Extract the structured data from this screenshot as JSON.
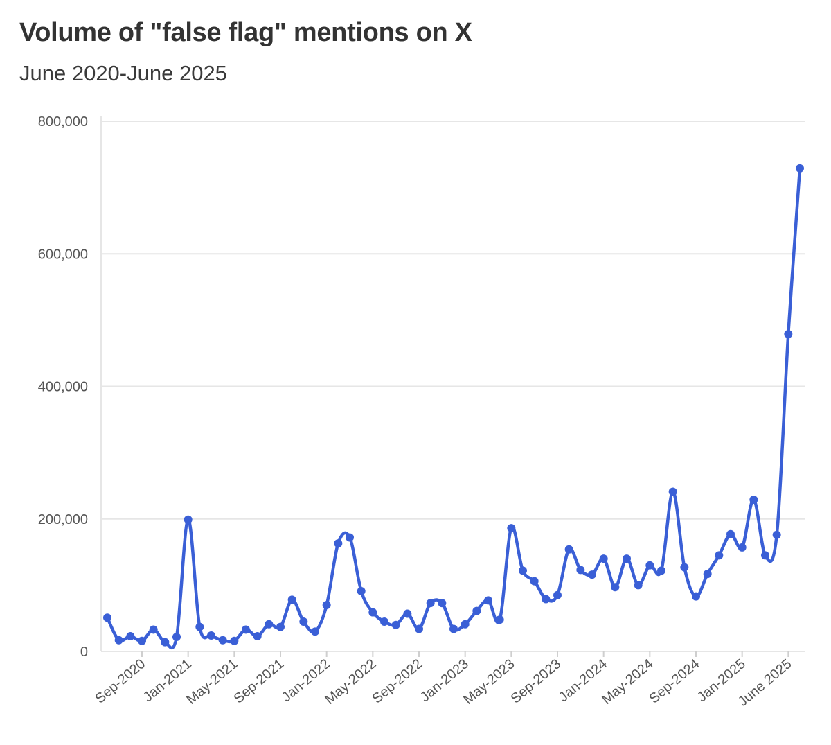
{
  "chart_data": {
    "type": "line",
    "title": "Volume of \"false flag\" mentions on X",
    "subtitle": "June 2020-June 2025",
    "xlabel": "",
    "ylabel": "",
    "x_tick_labels": [
      "Sep-2020",
      "Jan-2021",
      "May-2021",
      "Sep-2021",
      "Jan-2022",
      "May-2022",
      "Sep-2022",
      "Jan-2023",
      "May-2023",
      "Sep-2023",
      "Jan-2024",
      "May-2024",
      "Sep-2024",
      "Jan-2025",
      "June 2025"
    ],
    "y_tick_labels": [
      "800,000",
      "600,000",
      "400,000",
      "200,000",
      "0"
    ],
    "ylim": [
      0,
      800000
    ],
    "grid": true,
    "color": "#3a5fd6",
    "series": [
      {
        "x": [
          "2020-06",
          "2020-07",
          "2020-08",
          "2020-09",
          "2020-10",
          "2020-11",
          "2020-12",
          "2021-01",
          "2021-02",
          "2021-03",
          "2021-04",
          "2021-05",
          "2021-06",
          "2021-07",
          "2021-08",
          "2021-09",
          "2021-10",
          "2021-11",
          "2021-12",
          "2022-01",
          "2022-02",
          "2022-03",
          "2022-04",
          "2022-05",
          "2022-06",
          "2022-07",
          "2022-08",
          "2022-09",
          "2022-10",
          "2022-11",
          "2022-12",
          "2023-01",
          "2023-02",
          "2023-03",
          "2023-04",
          "2023-05",
          "2023-06",
          "2023-07",
          "2023-08",
          "2023-09",
          "2023-10",
          "2023-11",
          "2023-12",
          "2024-01",
          "2024-02",
          "2024-03",
          "2024-04",
          "2024-05",
          "2024-06",
          "2024-07",
          "2024-08",
          "2024-09",
          "2024-10",
          "2024-11",
          "2024-12",
          "2025-01",
          "2025-02",
          "2025-03",
          "2025-04",
          "2025-05",
          "2025-06"
        ],
        "values": [
          51000,
          17000,
          23000,
          16000,
          33000,
          14000,
          22000,
          199000,
          37000,
          24000,
          17000,
          16000,
          33000,
          23000,
          41000,
          37000,
          78000,
          45000,
          30000,
          70000,
          163000,
          172000,
          91000,
          59000,
          45000,
          40000,
          57000,
          34000,
          73000,
          73000,
          34000,
          41000,
          61000,
          77000,
          48000,
          186000,
          122000,
          106000,
          79000,
          85000,
          154000,
          123000,
          116000,
          140000,
          97000,
          140000,
          100000,
          130000,
          122000,
          241000,
          127000,
          83000,
          117000,
          145000,
          177000,
          157000,
          229000,
          145000,
          176000,
          479000,
          729000
        ]
      }
    ]
  }
}
